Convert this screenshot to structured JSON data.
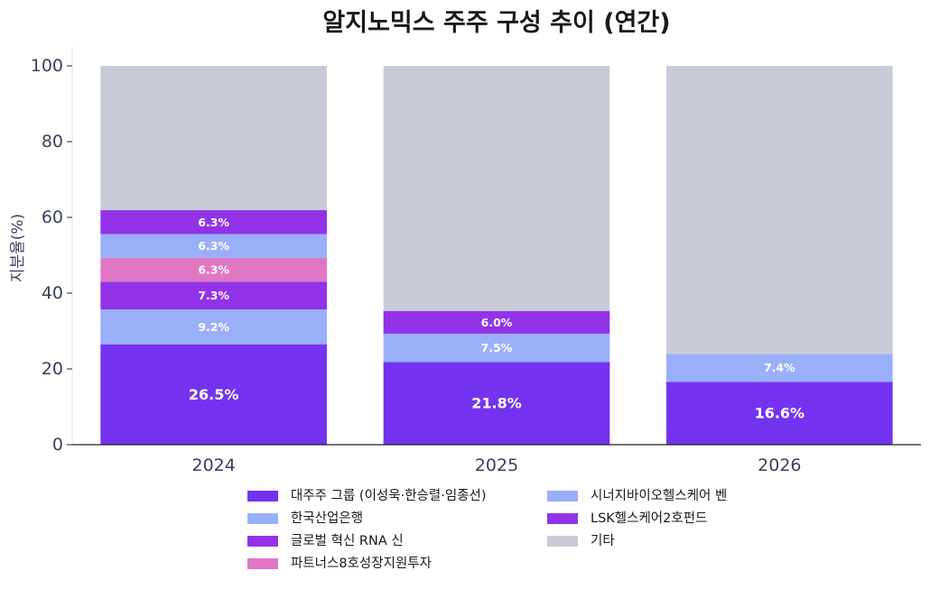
{
  "chart_data": {
    "type": "bar",
    "stacked": true,
    "title": "알지노믹스 주주 구성 추이 (연간)",
    "xlabel": "",
    "ylabel": "지분율(%)",
    "ylim": [
      0,
      105
    ],
    "yticks": [
      0,
      20,
      40,
      60,
      80,
      100
    ],
    "categories": [
      "2024",
      "2025",
      "2026"
    ],
    "grid": false,
    "legend_position": "bottom",
    "series": [
      {
        "name": "대주주 그룹 (이성욱·한승렬·임종선)",
        "color": "#7433f0",
        "values": [
          26.5,
          21.8,
          16.6
        ],
        "labels": [
          "26.5%",
          "21.8%",
          "16.6%"
        ]
      },
      {
        "name": "시너지바이오헬스케어 벤",
        "color": "#9aaffa",
        "values": [
          9.2,
          7.5,
          7.4
        ],
        "labels": [
          "9.2%",
          "7.5%",
          "7.4%"
        ]
      },
      {
        "name": "LSK헬스케어2호펀드",
        "color": "#9233e8",
        "values": [
          7.3,
          6.0,
          0
        ],
        "labels": [
          "7.3%",
          "6.0%",
          ""
        ]
      },
      {
        "name": "파트너스8호성장지원투자",
        "color": "#e077c4",
        "values": [
          6.3,
          0,
          0
        ],
        "labels": [
          "6.3%",
          "",
          ""
        ]
      },
      {
        "name": "한국산업은행",
        "color": "#9aaffa",
        "values": [
          6.3,
          0,
          0
        ],
        "labels": [
          "6.3%",
          "",
          ""
        ]
      },
      {
        "name": "글로벌 혁신 RNA 신",
        "color": "#9233e8",
        "values": [
          6.3,
          0,
          0
        ],
        "labels": [
          "6.3%",
          "",
          ""
        ]
      },
      {
        "name": "기타",
        "color": "#c9ccd6",
        "values": [
          38.1,
          64.7,
          76.0
        ],
        "labels": [
          "",
          "",
          ""
        ]
      }
    ],
    "legend_order": [
      [
        "대주주 그룹 (이성욱·한승렬·임종선)",
        "한국산업은행",
        "글로벌 혁신 RNA 신",
        "파트너스8호성장지원투자"
      ],
      [
        "시너지바이오헬스케어 벤",
        "LSK헬스케어2호펀드",
        "기타"
      ]
    ]
  }
}
